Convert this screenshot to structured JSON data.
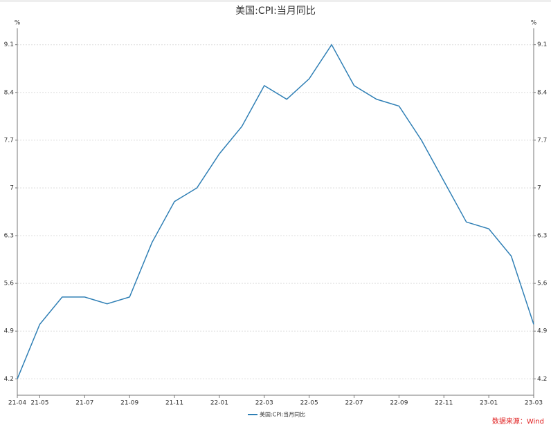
{
  "chart_data": {
    "type": "line",
    "title": "美国:CPI:当月同比",
    "y_label": "%",
    "y2_label": "%",
    "categories": [
      "21-04",
      "21-05",
      null,
      "21-07",
      null,
      "21-09",
      null,
      "21-11",
      null,
      "22-01",
      null,
      "22-03",
      null,
      "22-05",
      null,
      "22-07",
      null,
      "22-09",
      null,
      "22-11",
      null,
      "23-01",
      null,
      "23-03"
    ],
    "series": [
      {
        "name": "美国:CPI:当月同比",
        "color": "#2f7fb5",
        "values": [
          4.2,
          5.0,
          5.4,
          5.4,
          5.3,
          5.4,
          6.2,
          6.8,
          7.0,
          7.5,
          7.9,
          8.5,
          8.3,
          8.6,
          9.1,
          8.5,
          8.3,
          8.2,
          7.7,
          7.1,
          6.5,
          6.4,
          6.0,
          5.0
        ]
      }
    ],
    "ylim": [
      3.96,
      9.34
    ],
    "yticks": [
      4.2,
      4.9,
      5.6,
      6.3,
      7,
      7.7,
      8.4,
      9.1
    ],
    "y2lim": [
      3.96,
      9.34
    ],
    "y2ticks": [
      4.2,
      4.9,
      5.6,
      6.3,
      7,
      7.7,
      8.4,
      9.1
    ],
    "grid": true,
    "legend": "bottom",
    "source": "数据来源：Wind"
  }
}
